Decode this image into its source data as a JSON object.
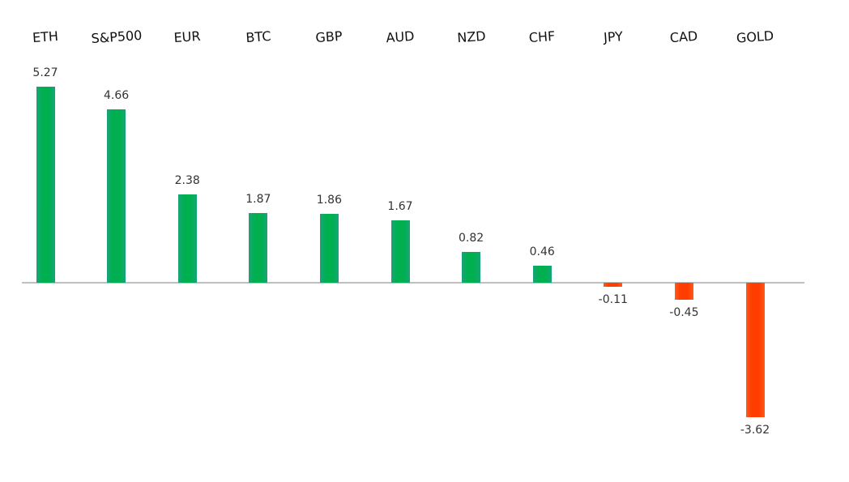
{
  "chart_data": {
    "type": "bar",
    "title": "",
    "xlabel": "",
    "ylabel": "",
    "categories": [
      "ETH",
      "S&P500",
      "EUR",
      "BTC",
      "GBP",
      "AUD",
      "NZD",
      "CHF",
      "JPY",
      "CAD",
      "GOLD"
    ],
    "values": [
      5.27,
      4.66,
      2.38,
      1.87,
      1.86,
      1.67,
      0.82,
      0.46,
      -0.11,
      -0.45,
      -3.62
    ],
    "data_labels": [
      "5.27",
      "4.66",
      "2.38",
      "1.87",
      "1.86",
      "1.67",
      "0.82",
      "0.46",
      "-0.11",
      "-0.45",
      "-3.62"
    ],
    "ylim": [
      -3.62,
      5.27
    ],
    "grid": false,
    "legend": null,
    "category_label_position": "top",
    "colors": {
      "positive": "#00b050",
      "negative": "#ff3d00",
      "axis": "#bfbfbf"
    }
  }
}
